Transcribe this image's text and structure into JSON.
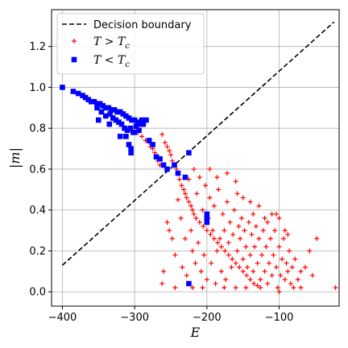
{
  "chart_data": {
    "type": "scatter",
    "xlabel": "E",
    "ylabel": "|m|",
    "xlim": [
      -415,
      -17
    ],
    "ylim": [
      -0.07,
      1.38
    ],
    "xticks": [
      -400,
      -300,
      -200,
      -100
    ],
    "yticks": [
      0.0,
      0.2,
      0.4,
      0.6,
      0.8,
      1.0,
      1.2
    ],
    "xtick_labels": [
      "−400",
      "−300",
      "−200",
      "−100"
    ],
    "ytick_labels": [
      "0.0",
      "0.2",
      "0.4",
      "0.6",
      "0.8",
      "1.0",
      "1.2"
    ],
    "grid": true,
    "legend_position": "top-left",
    "line": {
      "name": "Decision boundary",
      "style": "dashed",
      "color": "#000000",
      "x": [
        -400,
        -24
      ],
      "y": [
        0.13,
        1.32
      ]
    },
    "series": [
      {
        "name": "T > T_c",
        "label_parts": [
          "T",
          ">",
          "T",
          "c"
        ],
        "marker": "plus",
        "color": "#ff0000",
        "points": [
          [
            -300,
            0.8
          ],
          [
            -295,
            0.78
          ],
          [
            -290,
            0.76
          ],
          [
            -285,
            0.74
          ],
          [
            -280,
            0.73
          ],
          [
            -278,
            0.71
          ],
          [
            -275,
            0.7
          ],
          [
            -272,
            0.68
          ],
          [
            -270,
            0.66
          ],
          [
            -268,
            0.64
          ],
          [
            -265,
            0.62
          ],
          [
            -262,
            0.77
          ],
          [
            -258,
            0.73
          ],
          [
            -255,
            0.71
          ],
          [
            -252,
            0.69
          ],
          [
            -250,
            0.67
          ],
          [
            -248,
            0.64
          ],
          [
            -245,
            0.62
          ],
          [
            -242,
            0.6
          ],
          [
            -240,
            0.58
          ],
          [
            -238,
            0.55
          ],
          [
            -235,
            0.52
          ],
          [
            -232,
            0.5
          ],
          [
            -230,
            0.48
          ],
          [
            -228,
            0.46
          ],
          [
            -225,
            0.44
          ],
          [
            -222,
            0.42
          ],
          [
            -220,
            0.4
          ],
          [
            -218,
            0.38
          ],
          [
            -215,
            0.36
          ],
          [
            -210,
            0.34
          ],
          [
            -205,
            0.32
          ],
          [
            -200,
            0.3
          ],
          [
            -195,
            0.28
          ],
          [
            -190,
            0.26
          ],
          [
            -185,
            0.24
          ],
          [
            -180,
            0.22
          ],
          [
            -175,
            0.2
          ],
          [
            -170,
            0.18
          ],
          [
            -165,
            0.16
          ],
          [
            -160,
            0.14
          ],
          [
            -155,
            0.12
          ],
          [
            -150,
            0.1
          ],
          [
            -145,
            0.08
          ],
          [
            -140,
            0.06
          ],
          [
            -135,
            0.04
          ],
          [
            -130,
            0.03
          ],
          [
            -255,
            0.34
          ],
          [
            -252,
            0.3
          ],
          [
            -248,
            0.26
          ],
          [
            -244,
            0.18
          ],
          [
            -240,
            0.45
          ],
          [
            -236,
            0.36
          ],
          [
            -234,
            0.12
          ],
          [
            -230,
            0.26
          ],
          [
            -228,
            0.08
          ],
          [
            -225,
            0.55
          ],
          [
            -222,
            0.3
          ],
          [
            -220,
            0.2
          ],
          [
            -218,
            0.6
          ],
          [
            -216,
            0.14
          ],
          [
            -214,
            0.48
          ],
          [
            -212,
            0.24
          ],
          [
            -210,
            0.56
          ],
          [
            -208,
            0.1
          ],
          [
            -206,
            0.4
          ],
          [
            -204,
            0.18
          ],
          [
            -202,
            0.52
          ],
          [
            -200,
            0.06
          ],
          [
            -198,
            0.36
          ],
          [
            -196,
            0.46
          ],
          [
            -194,
            0.14
          ],
          [
            -192,
            0.3
          ],
          [
            -190,
            0.42
          ],
          [
            -188,
            0.04
          ],
          [
            -186,
            0.2
          ],
          [
            -184,
            0.5
          ],
          [
            -182,
            0.26
          ],
          [
            -180,
            0.1
          ],
          [
            -178,
            0.38
          ],
          [
            -176,
            0.3
          ],
          [
            -174,
            0.06
          ],
          [
            -172,
            0.44
          ],
          [
            -170,
            0.24
          ],
          [
            -168,
            0.34
          ],
          [
            -166,
            0.12
          ],
          [
            -164,
            0.28
          ],
          [
            -162,
            0.4
          ],
          [
            -160,
            0.02
          ],
          [
            -158,
            0.2
          ],
          [
            -156,
            0.32
          ],
          [
            -154,
            0.26
          ],
          [
            -152,
            0.36
          ],
          [
            -150,
            0.16
          ],
          [
            -148,
            0.3
          ],
          [
            -146,
            0.22
          ],
          [
            -144,
            0.12
          ],
          [
            -142,
            0.34
          ],
          [
            -140,
            0.18
          ],
          [
            -138,
            0.28
          ],
          [
            -136,
            0.1
          ],
          [
            -134,
            0.22
          ],
          [
            -132,
            0.32
          ],
          [
            -130,
            0.14
          ],
          [
            -128,
            0.26
          ],
          [
            -126,
            0.06
          ],
          [
            -124,
            0.18
          ],
          [
            -122,
            0.3
          ],
          [
            -120,
            0.1
          ],
          [
            -118,
            0.22
          ],
          [
            -116,
            0.04
          ],
          [
            -114,
            0.14
          ],
          [
            -112,
            0.26
          ],
          [
            -110,
            0.08
          ],
          [
            -108,
            0.18
          ],
          [
            -106,
            0.3
          ],
          [
            -104,
            0.12
          ],
          [
            -102,
            0.02
          ],
          [
            -100,
            0.22
          ],
          [
            -98,
            0.08
          ],
          [
            -96,
            0.16
          ],
          [
            -94,
            0.26
          ],
          [
            -92,
            0.06
          ],
          [
            -90,
            0.14
          ],
          [
            -88,
            0.1
          ],
          [
            -86,
            0.2
          ],
          [
            -84,
            0.04
          ],
          [
            -82,
            0.12
          ],
          [
            -78,
            0.16
          ],
          [
            -74,
            0.06
          ],
          [
            -70,
            0.1
          ],
          [
            -64,
            0.12
          ],
          [
            -58,
            0.2
          ],
          [
            -54,
            0.08
          ],
          [
            -48,
            0.26
          ],
          [
            -22,
            0.02
          ],
          [
            -262,
            0.04
          ],
          [
            -220,
            0.02
          ],
          [
            -196,
            0.6
          ],
          [
            -172,
            0.58
          ],
          [
            -160,
            0.54
          ],
          [
            -150,
            0.46
          ],
          [
            -140,
            0.44
          ],
          [
            -128,
            0.42
          ],
          [
            -110,
            0.38
          ],
          [
            -100,
            0.36
          ],
          [
            -104,
            0.38
          ],
          [
            -116,
            0.34
          ],
          [
            -186,
            0.56
          ],
          [
            -158,
            0.48
          ],
          [
            -136,
            0.38
          ],
          [
            -120,
            0.36
          ],
          [
            -92,
            0.3
          ],
          [
            -88,
            0.28
          ],
          [
            -260,
            0.1
          ],
          [
            -244,
            0.02
          ],
          [
            -206,
            0.02
          ],
          [
            -176,
            0.02
          ],
          [
            -146,
            0.02
          ],
          [
            -126,
            0.02
          ],
          [
            -100,
            0.0
          ],
          [
            -80,
            0.02
          ],
          [
            -70,
            0.02
          ]
        ]
      },
      {
        "name": "T < T_c",
        "label_parts": [
          "T",
          "<",
          "T",
          "c"
        ],
        "marker": "square",
        "color": "#0000ff",
        "points": [
          [
            -400,
            1.0
          ],
          [
            -385,
            0.98
          ],
          [
            -378,
            0.97
          ],
          [
            -372,
            0.96
          ],
          [
            -368,
            0.95
          ],
          [
            -364,
            0.94
          ],
          [
            -360,
            0.93
          ],
          [
            -356,
            0.93
          ],
          [
            -352,
            0.92
          ],
          [
            -348,
            0.92
          ],
          [
            -344,
            0.91
          ],
          [
            -340,
            0.9
          ],
          [
            -336,
            0.9
          ],
          [
            -332,
            0.89
          ],
          [
            -328,
            0.89
          ],
          [
            -324,
            0.88
          ],
          [
            -320,
            0.88
          ],
          [
            -316,
            0.87
          ],
          [
            -312,
            0.86
          ],
          [
            -308,
            0.85
          ],
          [
            -304,
            0.84
          ],
          [
            -300,
            0.84
          ],
          [
            -296,
            0.83
          ],
          [
            -292,
            0.82
          ],
          [
            -288,
            0.82
          ],
          [
            -284,
            0.84
          ],
          [
            -352,
            0.9
          ],
          [
            -346,
            0.88
          ],
          [
            -340,
            0.86
          ],
          [
            -334,
            0.87
          ],
          [
            -330,
            0.85
          ],
          [
            -326,
            0.84
          ],
          [
            -322,
            0.83
          ],
          [
            -318,
            0.82
          ],
          [
            -314,
            0.8
          ],
          [
            -310,
            0.79
          ],
          [
            -306,
            0.8
          ],
          [
            -302,
            0.78
          ],
          [
            -298,
            0.81
          ],
          [
            -294,
            0.79
          ],
          [
            -290,
            0.84
          ],
          [
            -350,
            0.84
          ],
          [
            -335,
            0.82
          ],
          [
            -320,
            0.76
          ],
          [
            -312,
            0.76
          ],
          [
            -308,
            0.72
          ],
          [
            -305,
            0.68
          ],
          [
            -305,
            0.7
          ],
          [
            -300,
            0.78
          ],
          [
            -280,
            0.74
          ],
          [
            -275,
            0.72
          ],
          [
            -270,
            0.66
          ],
          [
            -265,
            0.65
          ],
          [
            -260,
            0.62
          ],
          [
            -255,
            0.6
          ],
          [
            -245,
            0.62
          ],
          [
            -240,
            0.58
          ],
          [
            -230,
            0.56
          ],
          [
            -225,
            0.68
          ],
          [
            -200,
            0.38
          ],
          [
            -200,
            0.36
          ],
          [
            -200,
            0.34
          ],
          [
            -225,
            0.04
          ]
        ]
      }
    ]
  }
}
